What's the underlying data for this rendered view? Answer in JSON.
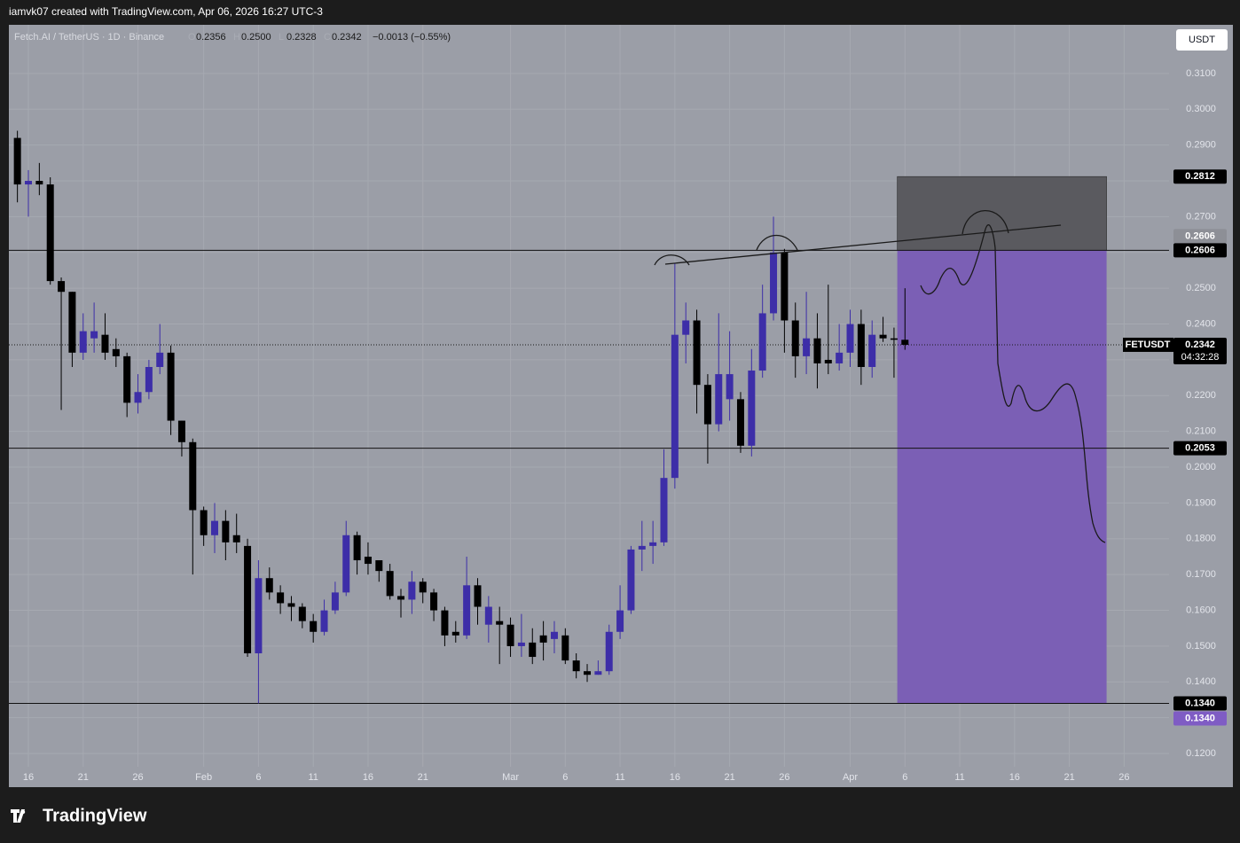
{
  "header": "iamvk07 created with TradingView.com, Apr 06, 2026 16:27 UTC-3",
  "legend": {
    "symbol": "Fetch.AI / TetherUS · 1D · Binance",
    "fields": [
      {
        "key": "O",
        "value": "0.2356"
      },
      {
        "key": "H",
        "value": "0.2500"
      },
      {
        "key": "L",
        "value": "0.2328"
      },
      {
        "key": "C",
        "value": "0.2342"
      }
    ],
    "change": "−0.0013 (−0.55%)"
  },
  "currency_button": "USDT",
  "footer_logo": "TradingView",
  "chart_data": {
    "type": "candlestick",
    "series": [
      {
        "name": "FETUSDT",
        "up_color": "#3d2ea8",
        "down_color": "#000000",
        "x": [
          1,
          2,
          3,
          4,
          5,
          6,
          7,
          8,
          9,
          10,
          11,
          12,
          13,
          14,
          15,
          16,
          17,
          18,
          19,
          20,
          21,
          22,
          23,
          24,
          25,
          26,
          27,
          28,
          29,
          30,
          31,
          32,
          33,
          34,
          35,
          36,
          37,
          38,
          39,
          40,
          41,
          42,
          43,
          44,
          45,
          46,
          47,
          48,
          49,
          50,
          51,
          52,
          53,
          54,
          55,
          56,
          57,
          58,
          59,
          60,
          61,
          62,
          63,
          64,
          65,
          66,
          67,
          68,
          69,
          70,
          71,
          72,
          73,
          74,
          75,
          76,
          77,
          78,
          79,
          80,
          81,
          82
        ],
        "open": [
          0.292,
          0.279,
          0.28,
          0.279,
          0.252,
          0.249,
          0.232,
          0.236,
          0.237,
          0.233,
          0.231,
          0.218,
          0.221,
          0.228,
          0.232,
          0.213,
          0.207,
          0.188,
          0.181,
          0.185,
          0.181,
          0.178,
          0.148,
          0.169,
          0.165,
          0.162,
          0.161,
          0.157,
          0.154,
          0.16,
          0.165,
          0.181,
          0.175,
          0.174,
          0.171,
          0.164,
          0.163,
          0.168,
          0.165,
          0.16,
          0.154,
          0.153,
          0.167,
          0.156,
          0.157,
          0.156,
          0.15,
          0.151,
          0.153,
          0.152,
          0.153,
          0.146,
          0.143,
          0.142,
          0.143,
          0.154,
          0.16,
          0.177,
          0.178,
          0.179,
          0.197,
          0.237,
          0.241,
          0.223,
          0.212,
          0.219,
          0.219,
          0.206,
          0.227,
          0.243,
          0.26,
          0.241,
          0.231,
          0.236,
          0.23,
          0.229,
          0.232,
          0.24,
          0.228,
          0.237,
          0.236,
          0.2356
        ],
        "high": [
          0.294,
          0.283,
          0.285,
          0.281,
          0.253,
          0.249,
          0.243,
          0.246,
          0.243,
          0.236,
          0.232,
          0.226,
          0.23,
          0.24,
          0.234,
          0.213,
          0.208,
          0.189,
          0.19,
          0.188,
          0.187,
          0.18,
          0.174,
          0.172,
          0.167,
          0.164,
          0.162,
          0.159,
          0.163,
          0.168,
          0.185,
          0.182,
          0.179,
          0.174,
          0.173,
          0.166,
          0.171,
          0.169,
          0.166,
          0.161,
          0.157,
          0.175,
          0.169,
          0.164,
          0.161,
          0.158,
          0.159,
          0.155,
          0.157,
          0.157,
          0.155,
          0.148,
          0.145,
          0.146,
          0.156,
          0.167,
          0.178,
          0.185,
          0.185,
          0.205,
          0.257,
          0.246,
          0.244,
          0.226,
          0.243,
          0.238,
          0.221,
          0.233,
          0.251,
          0.27,
          0.261,
          0.246,
          0.249,
          0.243,
          0.251,
          0.24,
          0.244,
          0.244,
          0.241,
          0.242,
          0.239,
          0.25
        ],
        "low": [
          0.274,
          0.27,
          0.276,
          0.251,
          0.216,
          0.228,
          0.23,
          0.232,
          0.23,
          0.228,
          0.214,
          0.215,
          0.219,
          0.226,
          0.209,
          0.203,
          0.17,
          0.178,
          0.176,
          0.174,
          0.176,
          0.147,
          0.134,
          0.163,
          0.159,
          0.157,
          0.155,
          0.151,
          0.153,
          0.159,
          0.164,
          0.17,
          0.17,
          0.168,
          0.163,
          0.158,
          0.159,
          0.162,
          0.157,
          0.15,
          0.151,
          0.152,
          0.156,
          0.151,
          0.145,
          0.147,
          0.147,
          0.145,
          0.146,
          0.148,
          0.145,
          0.141,
          0.14,
          0.142,
          0.142,
          0.152,
          0.159,
          0.171,
          0.173,
          0.178,
          0.194,
          0.229,
          0.215,
          0.201,
          0.21,
          0.213,
          0.204,
          0.203,
          0.225,
          0.241,
          0.232,
          0.225,
          0.226,
          0.222,
          0.226,
          0.227,
          0.228,
          0.223,
          0.225,
          0.235,
          0.225,
          0.2328
        ],
        "close": [
          0.279,
          0.28,
          0.279,
          0.252,
          0.249,
          0.232,
          0.238,
          0.238,
          0.232,
          0.231,
          0.218,
          0.221,
          0.228,
          0.232,
          0.213,
          0.207,
          0.188,
          0.181,
          0.185,
          0.179,
          0.179,
          0.148,
          0.169,
          0.165,
          0.162,
          0.161,
          0.157,
          0.154,
          0.16,
          0.165,
          0.181,
          0.174,
          0.173,
          0.171,
          0.164,
          0.163,
          0.168,
          0.165,
          0.16,
          0.153,
          0.153,
          0.167,
          0.161,
          0.161,
          0.156,
          0.15,
          0.151,
          0.147,
          0.151,
          0.154,
          0.146,
          0.143,
          0.142,
          0.143,
          0.154,
          0.16,
          0.177,
          0.178,
          0.179,
          0.197,
          0.237,
          0.241,
          0.223,
          0.212,
          0.226,
          0.226,
          0.206,
          0.227,
          0.243,
          0.26,
          0.241,
          0.231,
          0.236,
          0.229,
          0.229,
          0.232,
          0.24,
          0.228,
          0.237,
          0.236,
          0.2356,
          0.2342
        ]
      }
    ],
    "countdown": "04:32:28",
    "xlim": [
      0.22,
      106.1
    ],
    "xticks": [
      {
        "value": 2,
        "label": "16"
      },
      {
        "value": 7,
        "label": "21"
      },
      {
        "value": 12,
        "label": "26"
      },
      {
        "value": 18,
        "label": "Feb"
      },
      {
        "value": 23,
        "label": "6"
      },
      {
        "value": 28,
        "label": "11"
      },
      {
        "value": 33,
        "label": "16"
      },
      {
        "value": 38,
        "label": "21"
      },
      {
        "value": 46,
        "label": "Mar"
      },
      {
        "value": 51,
        "label": "6"
      },
      {
        "value": 56,
        "label": "11"
      },
      {
        "value": 61,
        "label": "16"
      },
      {
        "value": 66,
        "label": "21"
      },
      {
        "value": 71,
        "label": "26"
      },
      {
        "value": 77,
        "label": "Apr"
      },
      {
        "value": 82,
        "label": "6"
      },
      {
        "value": 87,
        "label": "11"
      },
      {
        "value": 92,
        "label": "16"
      },
      {
        "value": 97,
        "label": "21"
      },
      {
        "value": 102,
        "label": "26"
      }
    ],
    "ylim": [
      0.1163,
      0.3236
    ],
    "yticks": [
      {
        "value": 0.12,
        "label": "0.1200"
      },
      {
        "value": 0.13,
        "label": "0.1300"
      },
      {
        "value": 0.14,
        "label": "0.1400"
      },
      {
        "value": 0.15,
        "label": "0.1500"
      },
      {
        "value": 0.16,
        "label": "0.1600"
      },
      {
        "value": 0.17,
        "label": "0.1700"
      },
      {
        "value": 0.18,
        "label": "0.1800"
      },
      {
        "value": 0.19,
        "label": "0.1900"
      },
      {
        "value": 0.2,
        "label": "0.2000"
      },
      {
        "value": 0.21,
        "label": "0.2100"
      },
      {
        "value": 0.22,
        "label": "0.2200"
      },
      {
        "value": 0.23,
        "label": "0.2300"
      },
      {
        "value": 0.24,
        "label": "0.2400"
      },
      {
        "value": 0.25,
        "label": "0.2500"
      },
      {
        "value": 0.26,
        "label": "0.2600"
      },
      {
        "value": 0.27,
        "label": "0.2700"
      },
      {
        "value": 0.28,
        "label": "0.2800"
      },
      {
        "value": 0.29,
        "label": "0.2900"
      },
      {
        "value": 0.3,
        "label": "0.3000"
      },
      {
        "value": 0.31,
        "label": "0.3100"
      }
    ],
    "grid": true,
    "hlines": [
      0.2606,
      0.2053,
      {
        "value": 0.134,
        "label": "0.1340"
      }
    ],
    "position": {
      "stop": 0.2812,
      "entry": 0.2606,
      "target": {
        "value": 0.134,
        "label": "0.1340"
      },
      "start": 81.3,
      "end": 100.4,
      "profit_color": "#7b5fb5",
      "loss_color": "#5a5a5f"
    }
  }
}
